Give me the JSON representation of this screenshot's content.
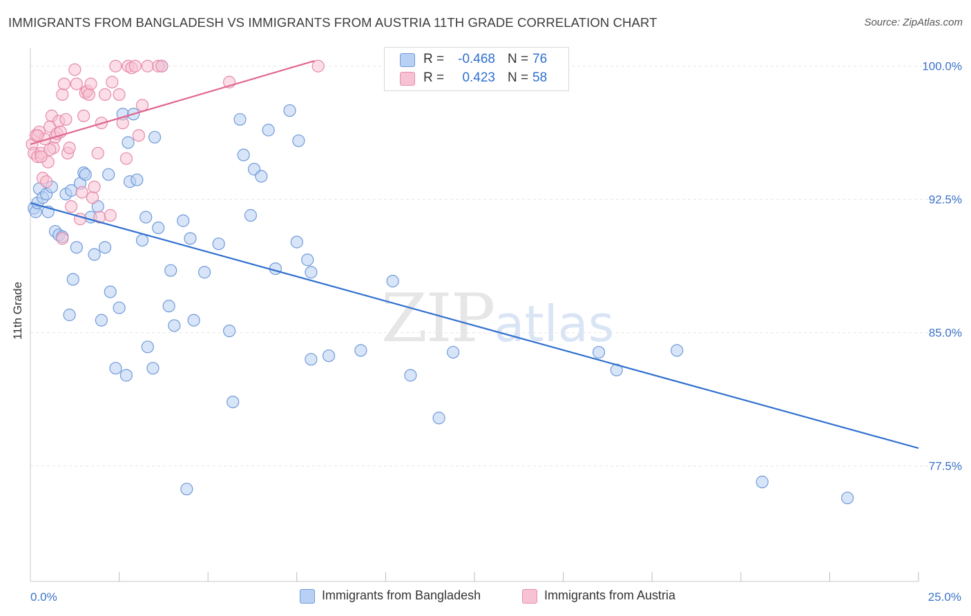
{
  "title": "IMMIGRANTS FROM BANGLADESH VS IMMIGRANTS FROM AUSTRIA 11TH GRADE CORRELATION CHART",
  "source": "Source: ZipAtlas.com",
  "watermark": {
    "zip": "ZIP",
    "atlas": "atlas"
  },
  "stats": {
    "row1": {
      "r_label": "R =",
      "r_value": "-0.468",
      "n_label": "N =",
      "n_value": "76"
    },
    "row2": {
      "r_label": "R =",
      "r_value": "0.423",
      "n_label": "N =",
      "n_value": "58"
    }
  },
  "legend": {
    "blue_label": "Immigrants from Bangladesh",
    "pink_label": "Immigrants from Austria"
  },
  "colors": {
    "blue_fill": "#b8d0f3",
    "blue_stroke": "#6f9ad9",
    "blue_line": "#2f6fcf",
    "pink_fill": "#f7c3d4",
    "pink_stroke": "#e68aa8",
    "pink_line": "#e0668f",
    "tick_label": "#3a72c9",
    "grid": "#e3e3e3"
  },
  "chart_data": {
    "type": "scatter",
    "title": "IMMIGRANTS FROM BANGLADESH VS IMMIGRANTS FROM AUSTRIA 11TH GRADE CORRELATION CHART",
    "xlabel": "",
    "ylabel": "11th Grade",
    "xlim": [
      0,
      25
    ],
    "ylim": [
      71,
      101
    ],
    "x_tick_labels": [
      {
        "value": 0,
        "label": "0.0%"
      },
      {
        "value": 25,
        "label": "25.0%"
      }
    ],
    "x_minor_ticks": [
      2.5,
      5,
      7.5,
      10,
      12.5,
      15,
      17.5,
      20,
      22.5,
      25
    ],
    "y_ticks": [
      {
        "value": 100,
        "label": "100.0%"
      },
      {
        "value": 92.5,
        "label": "92.5%"
      },
      {
        "value": 85,
        "label": "85.0%"
      },
      {
        "value": 77.5,
        "label": "77.5%"
      }
    ],
    "grid": true,
    "series": [
      {
        "name": "Immigrants from Bangladesh",
        "color": "blue",
        "trend": {
          "x0": 0,
          "y0": 92.3,
          "x1": 25,
          "y1": 78.5
        },
        "points": [
          [
            0.1,
            92.0
          ],
          [
            0.15,
            91.8
          ],
          [
            0.2,
            92.3
          ],
          [
            0.25,
            93.1
          ],
          [
            0.35,
            92.6
          ],
          [
            0.45,
            92.8
          ],
          [
            0.5,
            91.8
          ],
          [
            0.6,
            93.2
          ],
          [
            0.7,
            90.7
          ],
          [
            0.8,
            90.5
          ],
          [
            0.9,
            90.4
          ],
          [
            1.0,
            92.8
          ],
          [
            1.1,
            86.0
          ],
          [
            1.15,
            93.0
          ],
          [
            1.2,
            88.0
          ],
          [
            1.3,
            89.8
          ],
          [
            1.4,
            93.4
          ],
          [
            1.5,
            94.0
          ],
          [
            1.55,
            93.9
          ],
          [
            1.7,
            91.5
          ],
          [
            1.8,
            89.4
          ],
          [
            1.9,
            92.1
          ],
          [
            2.0,
            85.7
          ],
          [
            2.1,
            89.8
          ],
          [
            2.2,
            93.9
          ],
          [
            2.25,
            87.3
          ],
          [
            2.4,
            83.0
          ],
          [
            2.5,
            86.4
          ],
          [
            2.6,
            97.3
          ],
          [
            2.7,
            82.6
          ],
          [
            2.75,
            95.7
          ],
          [
            2.8,
            93.5
          ],
          [
            2.9,
            97.3
          ],
          [
            3.0,
            93.6
          ],
          [
            3.15,
            90.2
          ],
          [
            3.25,
            91.5
          ],
          [
            3.3,
            84.2
          ],
          [
            3.45,
            83.0
          ],
          [
            3.5,
            96.0
          ],
          [
            3.6,
            90.9
          ],
          [
            3.7,
            100.0
          ],
          [
            3.9,
            86.5
          ],
          [
            3.95,
            88.5
          ],
          [
            4.05,
            85.4
          ],
          [
            4.3,
            91.3
          ],
          [
            4.4,
            76.2
          ],
          [
            4.5,
            90.3
          ],
          [
            4.6,
            85.7
          ],
          [
            4.9,
            88.4
          ],
          [
            5.3,
            90.0
          ],
          [
            5.6,
            85.1
          ],
          [
            5.7,
            81.1
          ],
          [
            5.9,
            97.0
          ],
          [
            6.0,
            95.0
          ],
          [
            6.2,
            91.6
          ],
          [
            6.3,
            94.2
          ],
          [
            6.5,
            93.8
          ],
          [
            6.7,
            96.4
          ],
          [
            6.9,
            88.6
          ],
          [
            7.3,
            97.5
          ],
          [
            7.5,
            90.1
          ],
          [
            7.55,
            95.8
          ],
          [
            7.8,
            89.1
          ],
          [
            7.9,
            88.4
          ],
          [
            7.9,
            83.5
          ],
          [
            8.4,
            83.7
          ],
          [
            9.3,
            84.0
          ],
          [
            10.2,
            87.9
          ],
          [
            10.7,
            82.6
          ],
          [
            11.5,
            80.2
          ],
          [
            11.9,
            83.9
          ],
          [
            16.0,
            83.9
          ],
          [
            16.5,
            82.9
          ],
          [
            18.2,
            84.0
          ],
          [
            20.6,
            76.6
          ],
          [
            23.0,
            75.7
          ]
        ]
      },
      {
        "name": "Immigrants from Austria",
        "color": "pink",
        "trend": {
          "x0": 0,
          "y0": 95.6,
          "x1": 8,
          "y1": 100.3
        },
        "points": [
          [
            0.05,
            95.6
          ],
          [
            0.1,
            95.1
          ],
          [
            0.15,
            96.1
          ],
          [
            0.2,
            94.9
          ],
          [
            0.25,
            96.3
          ],
          [
            0.3,
            95.1
          ],
          [
            0.35,
            93.7
          ],
          [
            0.45,
            93.5
          ],
          [
            0.5,
            94.6
          ],
          [
            0.55,
            96.6
          ],
          [
            0.6,
            97.2
          ],
          [
            0.65,
            95.4
          ],
          [
            0.7,
            96.0
          ],
          [
            0.75,
            96.2
          ],
          [
            0.8,
            96.9
          ],
          [
            0.85,
            96.3
          ],
          [
            0.9,
            98.4
          ],
          [
            0.95,
            99.0
          ],
          [
            1.0,
            97.0
          ],
          [
            1.05,
            95.1
          ],
          [
            1.1,
            95.4
          ],
          [
            1.15,
            92.1
          ],
          [
            1.25,
            99.8
          ],
          [
            1.3,
            99.0
          ],
          [
            1.4,
            91.4
          ],
          [
            1.45,
            92.9
          ],
          [
            1.5,
            97.2
          ],
          [
            1.55,
            98.5
          ],
          [
            1.6,
            98.6
          ],
          [
            1.65,
            98.4
          ],
          [
            1.7,
            99.0
          ],
          [
            1.75,
            92.6
          ],
          [
            1.8,
            93.2
          ],
          [
            1.9,
            95.1
          ],
          [
            1.95,
            91.5
          ],
          [
            2.0,
            96.8
          ],
          [
            2.1,
            98.4
          ],
          [
            2.25,
            91.6
          ],
          [
            2.3,
            99.1
          ],
          [
            2.4,
            100.0
          ],
          [
            2.5,
            98.4
          ],
          [
            2.6,
            96.8
          ],
          [
            2.7,
            94.8
          ],
          [
            2.75,
            100.0
          ],
          [
            2.85,
            99.9
          ],
          [
            2.95,
            100.0
          ],
          [
            3.05,
            96.1
          ],
          [
            3.15,
            97.8
          ],
          [
            3.3,
            100.0
          ],
          [
            3.6,
            100.0
          ],
          [
            3.7,
            100.0
          ],
          [
            5.6,
            99.1
          ],
          [
            8.1,
            100.0
          ],
          [
            0.4,
            95.9
          ],
          [
            0.3,
            94.9
          ],
          [
            0.2,
            96.1
          ],
          [
            0.55,
            95.3
          ],
          [
            0.9,
            90.3
          ]
        ]
      }
    ]
  },
  "y_axis_label": "11th Grade"
}
